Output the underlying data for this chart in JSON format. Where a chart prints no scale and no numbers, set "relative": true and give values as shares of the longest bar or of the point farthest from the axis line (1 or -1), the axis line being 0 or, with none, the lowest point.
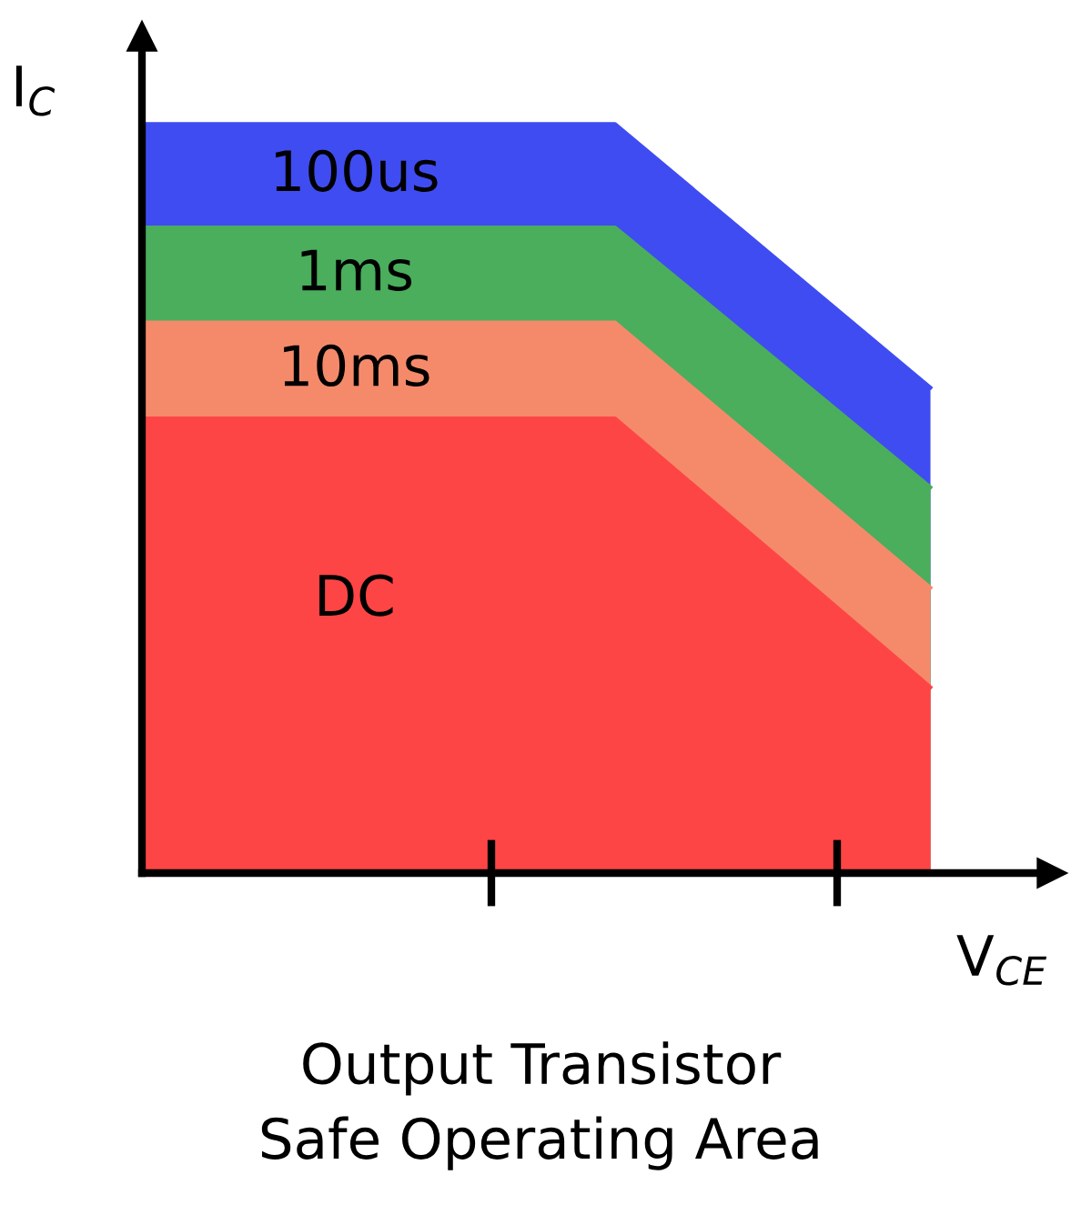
{
  "chart_data": {
    "type": "area",
    "title": "Output Transistor\nSafe Operating Area",
    "xlabel": "V$_{CE}$",
    "ylabel": "I$_{C}$",
    "relative": true,
    "categories": [
      null,
      null,
      null,
      null,
      null,
      null
    ],
    "series": [
      {
        "name": "100us",
        "color": "#3f4cf2",
        "values": [
          1,
          1,
          1,
          1,
          0.824,
          0.648
        ]
      },
      {
        "name": "1ms",
        "color": "#4aae5c",
        "values": [
          0.862,
          0.862,
          0.862,
          0.862,
          0.689,
          0.515
        ]
      },
      {
        "name": "10ms",
        "color": "#f58a6b",
        "values": [
          0.735,
          0.735,
          0.735,
          0.735,
          0.558,
          0.381
        ]
      },
      {
        "name": "DC",
        "color": "#fe4545",
        "values": [
          0.607,
          0.607,
          0.607,
          0.607,
          0.428,
          0.248
        ]
      }
    ]
  }
}
